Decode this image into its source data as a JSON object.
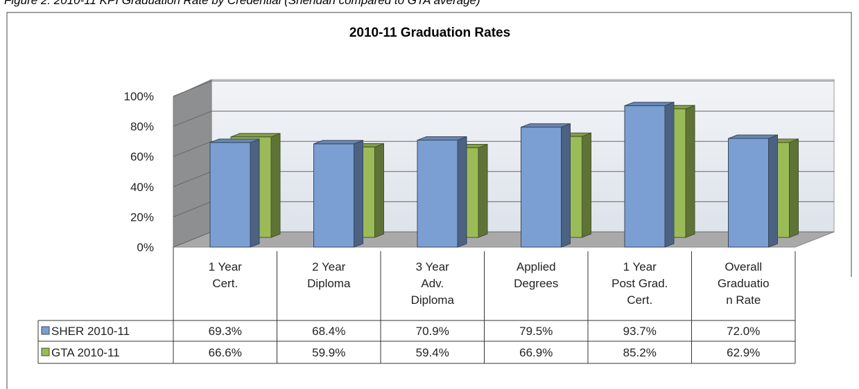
{
  "caption": "Figure 2: 2010-11 KPI Graduation Rate by Credential (Sheridan compared to GTA average)",
  "chart_data": {
    "type": "bar3d",
    "title": "2010-11 Graduation Rates",
    "categories": [
      [
        "1 Year",
        "Cert."
      ],
      [
        "2 Year",
        "Diploma"
      ],
      [
        "3 Year",
        "Adv.",
        "Diploma"
      ],
      [
        "Applied",
        "Degrees"
      ],
      [
        "1 Year",
        "Post Grad.",
        "Cert."
      ],
      [
        "Overall",
        "Graduatio",
        "n Rate"
      ]
    ],
    "series": [
      {
        "name": "SHER 2010-11",
        "color": "#7b9fd2",
        "values": [
          69.3,
          68.4,
          70.9,
          79.5,
          93.7,
          72.0
        ],
        "value_labels": [
          "69.3%",
          "68.4%",
          "70.9%",
          "79.5%",
          "93.7%",
          "72.0%"
        ]
      },
      {
        "name": "GTA 2010-11",
        "color": "#9bbb59",
        "values": [
          66.6,
          59.9,
          59.4,
          66.9,
          85.2,
          62.9
        ],
        "value_labels": [
          "66.6%",
          "59.9%",
          "59.4%",
          "66.9%",
          "85.2%",
          "62.9%"
        ]
      }
    ],
    "ylim": [
      0,
      100
    ],
    "yticks": [
      {
        "value": 0,
        "label": "0%"
      },
      {
        "value": 20,
        "label": "20%"
      },
      {
        "value": 40,
        "label": "40%"
      },
      {
        "value": 60,
        "label": "60%"
      },
      {
        "value": 80,
        "label": "80%"
      },
      {
        "value": 100,
        "label": "100%"
      }
    ],
    "grid": true,
    "data_table": true
  }
}
